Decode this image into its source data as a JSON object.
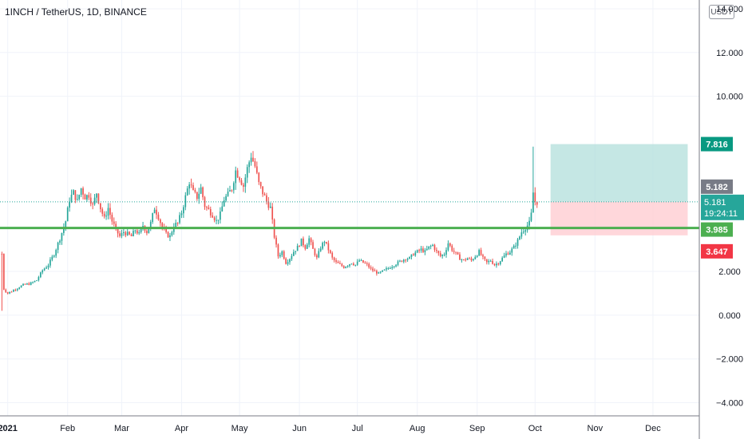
{
  "header": {
    "title": "1INCH / TetherUS, 1D, BINANCE",
    "currency": "USDT"
  },
  "colors": {
    "up": "#26a69a",
    "down": "#ef5350",
    "support": "#4caf50",
    "target_zone": "#b2dfdb",
    "stop_zone": "#ffcdd2",
    "grid": "#f0f3fa"
  },
  "chart_data": {
    "type": "candlestick",
    "y_ticks": [
      {
        "v": 14,
        "label": "14.000"
      },
      {
        "v": 12,
        "label": "12.000"
      },
      {
        "v": 10,
        "label": "10.000"
      },
      {
        "v": 2,
        "label": "2.000"
      },
      {
        "v": 0,
        "label": "0.000"
      },
      {
        "v": -2,
        "label": "−2.000"
      },
      {
        "v": -4,
        "label": "−4.000"
      }
    ],
    "x_ticks": [
      {
        "day": 0,
        "label": "2021"
      },
      {
        "day": 31,
        "label": "Feb"
      },
      {
        "day": 59,
        "label": "Mar"
      },
      {
        "day": 90,
        "label": "Apr"
      },
      {
        "day": 120,
        "label": "May"
      },
      {
        "day": 151,
        "label": "Jun"
      },
      {
        "day": 181,
        "label": "Jul"
      },
      {
        "day": 212,
        "label": "Aug"
      },
      {
        "day": 243,
        "label": "Sep"
      },
      {
        "day": 273,
        "label": "Oct"
      },
      {
        "day": 304,
        "label": "Nov"
      },
      {
        "day": 334,
        "label": "Dec"
      }
    ],
    "x_range_days": [
      -4,
      358
    ],
    "y_range": [
      -4.6,
      14.4
    ],
    "series_close": [
      [
        -3,
        2.8
      ],
      [
        -2,
        1.2
      ],
      [
        0,
        1.0
      ],
      [
        3,
        1.15
      ],
      [
        6,
        1.3
      ],
      [
        9,
        1.4
      ],
      [
        12,
        1.45
      ],
      [
        15,
        1.6
      ],
      [
        18,
        2.05
      ],
      [
        21,
        2.3
      ],
      [
        24,
        2.8
      ],
      [
        27,
        3.5
      ],
      [
        30,
        4.3
      ],
      [
        32,
        5.3
      ],
      [
        34,
        5.6
      ],
      [
        36,
        5.2
      ],
      [
        38,
        5.8
      ],
      [
        40,
        5.4
      ],
      [
        42,
        5.5
      ],
      [
        44,
        5.0
      ],
      [
        46,
        5.6
      ],
      [
        48,
        4.9
      ],
      [
        50,
        4.4
      ],
      [
        52,
        4.9
      ],
      [
        54,
        4.3
      ],
      [
        56,
        3.9
      ],
      [
        58,
        3.6
      ],
      [
        60,
        3.8
      ],
      [
        62,
        3.7
      ],
      [
        64,
        3.6
      ],
      [
        66,
        3.9
      ],
      [
        68,
        3.7
      ],
      [
        70,
        4.1
      ],
      [
        72,
        3.8
      ],
      [
        74,
        4.2
      ],
      [
        76,
        4.9
      ],
      [
        78,
        4.5
      ],
      [
        80,
        4.0
      ],
      [
        82,
        3.7
      ],
      [
        84,
        3.6
      ],
      [
        86,
        4.1
      ],
      [
        88,
        4.2
      ],
      [
        90,
        4.7
      ],
      [
        92,
        5.4
      ],
      [
        94,
        6.1
      ],
      [
        96,
        5.6
      ],
      [
        98,
        5.4
      ],
      [
        100,
        5.8
      ],
      [
        102,
        5.0
      ],
      [
        104,
        4.8
      ],
      [
        106,
        4.6
      ],
      [
        108,
        4.3
      ],
      [
        110,
        4.6
      ],
      [
        112,
        5.3
      ],
      [
        114,
        5.5
      ],
      [
        116,
        5.8
      ],
      [
        118,
        6.6
      ],
      [
        120,
        6.3
      ],
      [
        122,
        5.9
      ],
      [
        124,
        6.7
      ],
      [
        126,
        7.3
      ],
      [
        128,
        6.8
      ],
      [
        130,
        6.0
      ],
      [
        132,
        5.6
      ],
      [
        134,
        5.2
      ],
      [
        136,
        4.9
      ],
      [
        138,
        3.6
      ],
      [
        140,
        2.7
      ],
      [
        142,
        2.9
      ],
      [
        144,
        2.4
      ],
      [
        146,
        2.6
      ],
      [
        148,
        2.9
      ],
      [
        150,
        3.1
      ],
      [
        152,
        3.4
      ],
      [
        154,
        3.1
      ],
      [
        156,
        3.5
      ],
      [
        158,
        3.0
      ],
      [
        160,
        2.6
      ],
      [
        162,
        3.1
      ],
      [
        164,
        3.4
      ],
      [
        166,
        3.0
      ],
      [
        168,
        2.6
      ],
      [
        170,
        2.4
      ],
      [
        172,
        2.3
      ],
      [
        174,
        2.2
      ],
      [
        176,
        2.3
      ],
      [
        178,
        2.4
      ],
      [
        180,
        2.3
      ],
      [
        182,
        2.5
      ],
      [
        184,
        2.4
      ],
      [
        186,
        2.3
      ],
      [
        188,
        2.1
      ],
      [
        190,
        2.0
      ],
      [
        192,
        1.9
      ],
      [
        194,
        2.0
      ],
      [
        196,
        2.1
      ],
      [
        198,
        2.2
      ],
      [
        200,
        2.3
      ],
      [
        202,
        2.4
      ],
      [
        204,
        2.5
      ],
      [
        206,
        2.6
      ],
      [
        208,
        2.6
      ],
      [
        210,
        2.8
      ],
      [
        212,
        2.9
      ],
      [
        214,
        3.0
      ],
      [
        216,
        2.9
      ],
      [
        218,
        3.1
      ],
      [
        220,
        3.2
      ],
      [
        222,
        2.9
      ],
      [
        224,
        2.7
      ],
      [
        226,
        2.8
      ],
      [
        228,
        3.3
      ],
      [
        230,
        3.0
      ],
      [
        232,
        2.8
      ],
      [
        234,
        2.6
      ],
      [
        236,
        2.5
      ],
      [
        238,
        2.6
      ],
      [
        240,
        2.5
      ],
      [
        242,
        2.7
      ],
      [
        244,
        2.9
      ],
      [
        246,
        2.6
      ],
      [
        248,
        2.4
      ],
      [
        250,
        2.5
      ],
      [
        252,
        2.3
      ],
      [
        254,
        2.4
      ],
      [
        256,
        2.6
      ],
      [
        258,
        2.8
      ],
      [
        260,
        2.9
      ],
      [
        262,
        3.1
      ],
      [
        264,
        3.4
      ],
      [
        266,
        3.8
      ],
      [
        268,
        4.0
      ],
      [
        270,
        4.2
      ],
      [
        271,
        4.6
      ],
      [
        272,
        5.6
      ],
      [
        273,
        5.2
      ],
      [
        274,
        5.18
      ]
    ],
    "current": {
      "price_label": "5.181",
      "timer_label": "19:24:11",
      "gray_label": "5.182",
      "value": 5.18
    },
    "support": {
      "value": 3.985,
      "label": "3.985"
    },
    "target": {
      "value": 7.816,
      "label": "7.816"
    },
    "stop": {
      "value": 3.647,
      "label": "3.647"
    },
    "position_box": {
      "x_from_day": 281,
      "x_to_day": 352
    }
  }
}
